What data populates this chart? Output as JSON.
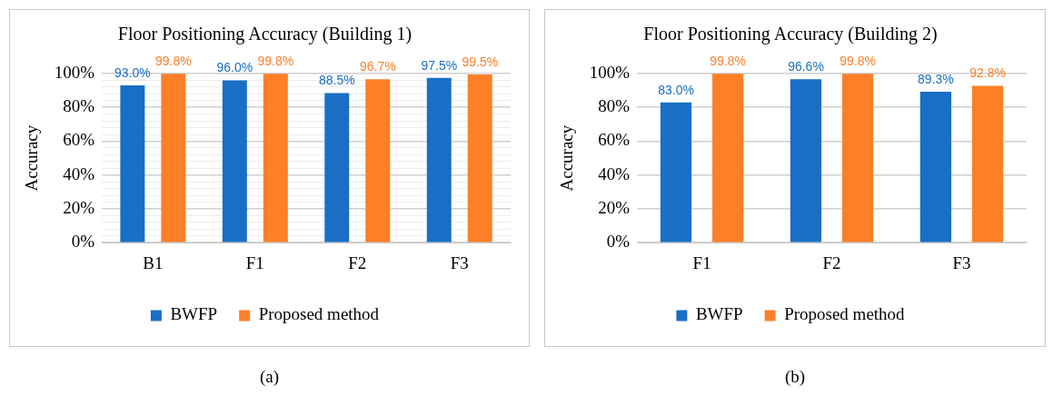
{
  "chart_data": [
    {
      "type": "bar",
      "title": "Floor Positioning Accuracy (Building 1)",
      "ylabel": "Accuracy",
      "categories": [
        "B1",
        "F1",
        "F2",
        "F3"
      ],
      "series": [
        {
          "name": "BWFP",
          "color": "#1a6fc4",
          "values": [
            93.0,
            96.0,
            88.5,
            97.5
          ],
          "value_labels": [
            "93.0%",
            "96.0%",
            "88.5%",
            "97.5%"
          ]
        },
        {
          "name": "Proposed method",
          "color": "#fd7f28",
          "values": [
            99.8,
            99.8,
            96.7,
            99.5
          ],
          "value_labels": [
            "99.8%",
            "99.8%",
            "96.7%",
            "99.5%"
          ]
        }
      ],
      "ylim": [
        0,
        100
      ],
      "yticks": [
        {
          "value": 0,
          "label": "0%"
        },
        {
          "value": 4,
          "label": null
        },
        {
          "value": 8,
          "label": null
        },
        {
          "value": 12,
          "label": null
        },
        {
          "value": 16,
          "label": null
        },
        {
          "value": 20,
          "label": "20%"
        },
        {
          "value": 24,
          "label": null
        },
        {
          "value": 28,
          "label": null
        },
        {
          "value": 32,
          "label": null
        },
        {
          "value": 36,
          "label": null
        },
        {
          "value": 40,
          "label": "40%"
        },
        {
          "value": 44,
          "label": null
        },
        {
          "value": 48,
          "label": null
        },
        {
          "value": 52,
          "label": null
        },
        {
          "value": 56,
          "label": null
        },
        {
          "value": 60,
          "label": "60%"
        },
        {
          "value": 64,
          "label": null
        },
        {
          "value": 68,
          "label": null
        },
        {
          "value": 72,
          "label": null
        },
        {
          "value": 76,
          "label": null
        },
        {
          "value": 80,
          "label": "80%"
        },
        {
          "value": 84,
          "label": null
        },
        {
          "value": 88,
          "label": null
        },
        {
          "value": 92,
          "label": null
        },
        {
          "value": 96,
          "label": null
        },
        {
          "value": 100,
          "label": "100%"
        }
      ],
      "grid": "y",
      "legend": "bottom",
      "annotations": [
        "(a)"
      ]
    },
    {
      "type": "bar",
      "title": "Floor Positioning Accuracy (Building 2)",
      "ylabel": "Accuracy",
      "categories": [
        "F1",
        "F2",
        "F3"
      ],
      "series": [
        {
          "name": "BWFP",
          "color": "#1a6fc4",
          "values": [
            83.0,
            96.6,
            89.3
          ],
          "value_labels": [
            "83.0%",
            "96.6%",
            "89.3%"
          ]
        },
        {
          "name": "Proposed method",
          "color": "#fd7f28",
          "values": [
            99.8,
            99.8,
            92.8
          ],
          "value_labels": [
            "99.8%",
            "99.8%",
            "92.8%"
          ]
        }
      ],
      "ylim": [
        0,
        100
      ],
      "yticks": [
        {
          "value": 0,
          "label": "0%"
        },
        {
          "value": 20,
          "label": "20%"
        },
        {
          "value": 40,
          "label": "40%"
        },
        {
          "value": 60,
          "label": "60%"
        },
        {
          "value": 80,
          "label": "80%"
        },
        {
          "value": 100,
          "label": "100%"
        }
      ],
      "grid": "y",
      "legend": "bottom",
      "annotations": [
        "(b)"
      ]
    }
  ]
}
